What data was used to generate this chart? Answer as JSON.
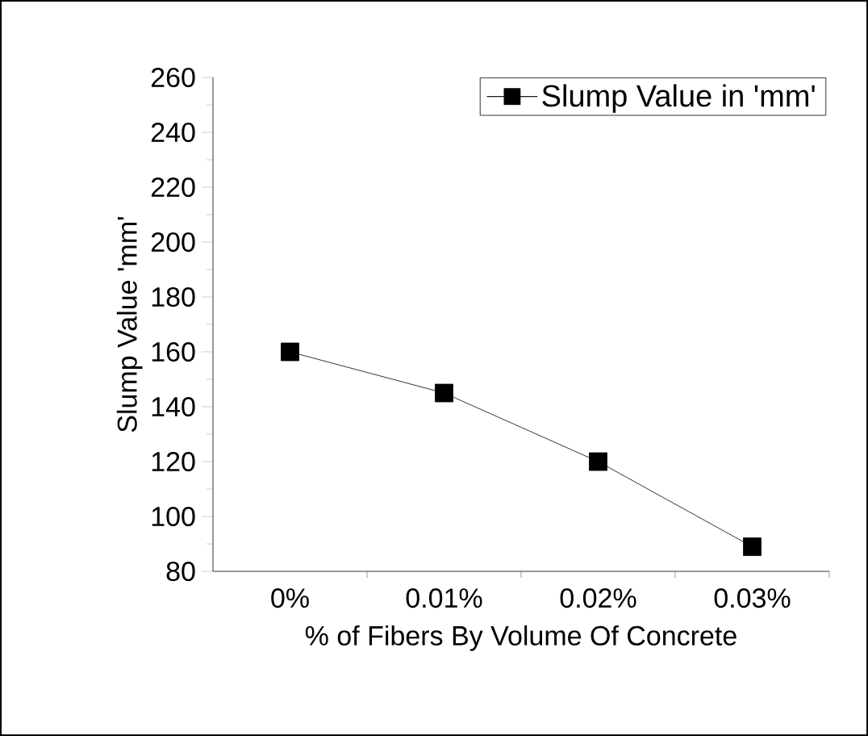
{
  "chart_data": {
    "type": "line",
    "xlabel": "% of Fibers By Volume Of Concrete",
    "ylabel": "Slump Value 'mm'",
    "categories": [
      "0%",
      "0.01%",
      "0.02%",
      "0.03%"
    ],
    "series": [
      {
        "name": "Slump Value in 'mm'",
        "color": "#000000",
        "values": [
          160,
          145,
          120,
          89
        ]
      }
    ],
    "ylim": [
      80,
      260
    ],
    "yticks": [
      80,
      100,
      120,
      140,
      160,
      180,
      200,
      220,
      240,
      260
    ],
    "legend": "top right",
    "marker": "square",
    "line_style": "solid"
  }
}
